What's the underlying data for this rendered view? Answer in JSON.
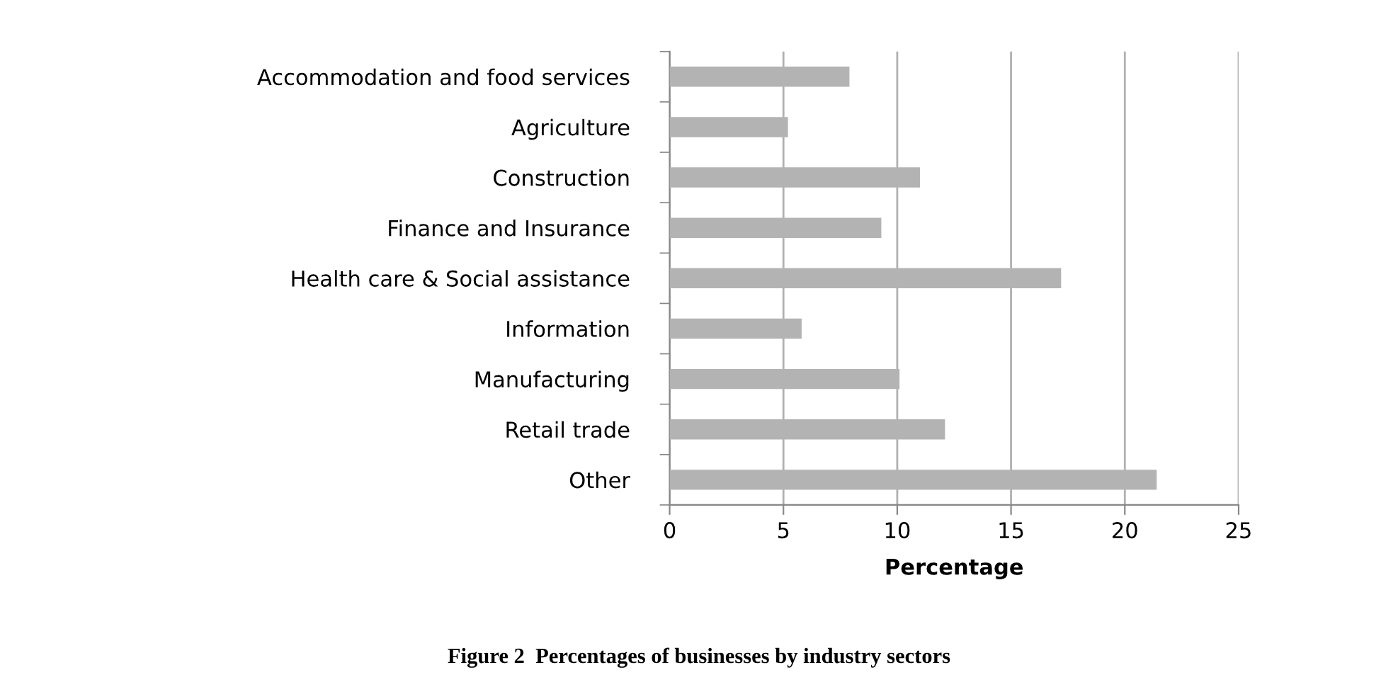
{
  "chart_data": {
    "type": "bar",
    "orientation": "horizontal",
    "title": "Figure 2  Percentages of businesses by industry sectors",
    "xlabel": "Percentage",
    "categories": [
      "Accommodation and food services",
      "Agriculture",
      "Construction",
      "Finance and Insurance",
      "Health care & Social assistance",
      "Information",
      "Manufacturing",
      "Retail trade",
      "Other"
    ],
    "values": [
      7.9,
      5.2,
      11.0,
      9.3,
      17.2,
      5.8,
      10.1,
      12.1,
      21.4
    ],
    "color": "#b3b3b3",
    "xlim": [
      0,
      25
    ],
    "xticks": [
      0,
      5,
      10,
      15,
      20,
      25
    ],
    "grid": "x",
    "legend": false
  }
}
